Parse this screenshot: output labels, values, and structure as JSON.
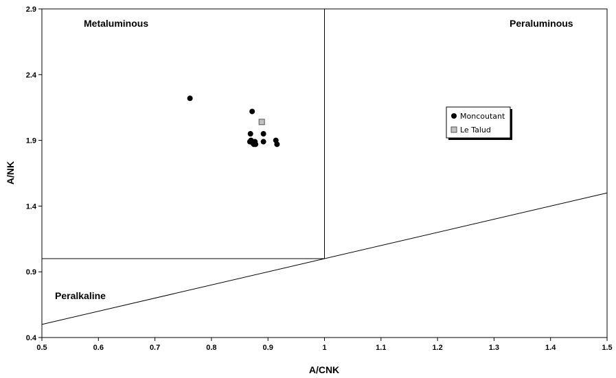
{
  "chart_data": {
    "type": "scatter",
    "xlabel": "A/CNK",
    "ylabel": "A/NK",
    "xlim": [
      0.5,
      1.5
    ],
    "ylim": [
      0.4,
      2.9
    ],
    "x_ticks": [
      "0.5",
      "0.6",
      "0.7",
      "0.8",
      "0.9",
      "1",
      "1.1",
      "1.2",
      "1.3",
      "1.4",
      "1.5"
    ],
    "y_ticks": [
      "0.4",
      "0.9",
      "1.4",
      "1.9",
      "2.4",
      "2.9"
    ],
    "grid": false,
    "legend_position": "right",
    "region_labels": {
      "metaluminous": "Metaluminous",
      "peraluminous": "Peraluminous",
      "peralkaline": "Peralkaline"
    },
    "boundary_lines": [
      {
        "x": [
          0.5,
          1.0
        ],
        "y": [
          1.0,
          1.0
        ]
      },
      {
        "x": [
          1.0,
          1.0
        ],
        "y": [
          1.0,
          2.9
        ]
      },
      {
        "x": [
          0.5,
          1.5
        ],
        "y": [
          0.5,
          1.5
        ]
      }
    ],
    "series": [
      {
        "name": "Moncoutant",
        "marker": "circle",
        "color": "#000000",
        "x": [
          0.762,
          0.872,
          0.869,
          0.892,
          0.868,
          0.87,
          0.873,
          0.875,
          0.877,
          0.878,
          0.892,
          0.914,
          0.916
        ],
        "y": [
          2.22,
          2.12,
          1.95,
          1.95,
          1.89,
          1.9,
          1.88,
          1.87,
          1.89,
          1.87,
          1.89,
          1.9,
          1.87
        ]
      },
      {
        "name": "Le Talud",
        "marker": "square",
        "color": "#c0c0c0",
        "x": [
          0.889
        ],
        "y": [
          2.04
        ]
      }
    ]
  }
}
